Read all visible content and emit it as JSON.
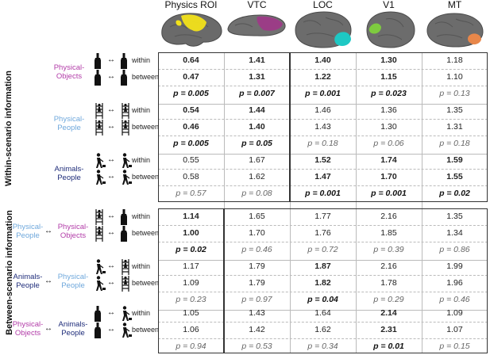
{
  "columns": [
    {
      "label": "Physics ROI",
      "color": "#f2e21a"
    },
    {
      "label": "VTC",
      "color": "#9b3d86"
    },
    {
      "label": "LOC",
      "color": "#1ec8c4"
    },
    {
      "label": "V1",
      "color": "#7ecb3f"
    },
    {
      "label": "MT",
      "color": "#e8874a"
    }
  ],
  "sections": {
    "within": "Within-scenario information",
    "between": "Between-scenario information"
  },
  "row_labels": {
    "within": "within",
    "between": "between"
  },
  "groups": [
    {
      "left": "Physical-\nObjects",
      "right": "",
      "left_class": "c-phys-obj",
      "right_class": "",
      "icon_within": "bottle ↔ bottle",
      "icon_between": "bottle ↔ bottle",
      "rows": [
        {
          "values": [
            "0.64",
            "1.41",
            "1.40",
            "1.30",
            "1.18"
          ],
          "styles": [
            "b",
            "b",
            "b",
            "b",
            ""
          ]
        },
        {
          "values": [
            "0.47",
            "1.31",
            "1.22",
            "1.15",
            "1.10"
          ],
          "styles": [
            "b",
            "b",
            "b",
            "b",
            ""
          ]
        },
        {
          "values": [
            "p = 0.005",
            "p = 0.007",
            "p = 0.001",
            "p = 0.023",
            "p = 0.13"
          ],
          "styles": [
            "bi",
            "bi",
            "bi",
            "bi",
            "i"
          ]
        }
      ]
    },
    {
      "left": "Physical-\nPeople",
      "right": "",
      "left_class": "c-phys-ppl",
      "right_class": "",
      "icon_within": "ladder ↔ ladder",
      "icon_between": "ladder ↔ ladder",
      "rows": [
        {
          "values": [
            "0.54",
            "1.44",
            "1.46",
            "1.36",
            "1.35"
          ],
          "styles": [
            "b",
            "b",
            "",
            "",
            ""
          ]
        },
        {
          "values": [
            "0.46",
            "1.40",
            "1.43",
            "1.30",
            "1.31"
          ],
          "styles": [
            "b",
            "b",
            "",
            "",
            ""
          ]
        },
        {
          "values": [
            "p = 0.005",
            "p = 0.05",
            "p = 0.18",
            "p = 0.06",
            "p = 0.18"
          ],
          "styles": [
            "bi",
            "bi",
            "i",
            "i",
            "i"
          ]
        }
      ]
    },
    {
      "left": "Animals-\nPeople",
      "right": "",
      "left_class": "c-anim-ppl",
      "right_class": "",
      "icon_within": "walker ↔ walker",
      "icon_between": "walker ↔ walker",
      "rows": [
        {
          "values": [
            "0.55",
            "1.67",
            "1.52",
            "1.74",
            "1.59"
          ],
          "styles": [
            "",
            "",
            "b",
            "b",
            "b"
          ]
        },
        {
          "values": [
            "0.58",
            "1.62",
            "1.47",
            "1.70",
            "1.55"
          ],
          "styles": [
            "",
            "",
            "b",
            "b",
            "b"
          ]
        },
        {
          "values": [
            "p = 0.57",
            "p = 0.08",
            "p = 0.001",
            "p = 0.001",
            "p = 0.02"
          ],
          "styles": [
            "i",
            "i",
            "bi",
            "bi",
            "bi"
          ]
        }
      ]
    },
    {
      "left": "Physical-\nPeople",
      "right": "Physical-\nObjects",
      "left_class": "c-phys-ppl",
      "right_class": "c-phys-obj",
      "icon_within": "ladder ↔ bottle",
      "icon_between": "ladder ↔ bottle",
      "rows": [
        {
          "values": [
            "1.14",
            "1.65",
            "1.77",
            "2.16",
            "1.35"
          ],
          "styles": [
            "b",
            "",
            "",
            "",
            ""
          ]
        },
        {
          "values": [
            "1.00",
            "1.70",
            "1.76",
            "1.85",
            "1.34"
          ],
          "styles": [
            "b",
            "",
            "",
            "",
            ""
          ]
        },
        {
          "values": [
            "p = 0.02",
            "p = 0.46",
            "p = 0.72",
            "p = 0.39",
            "p = 0.86"
          ],
          "styles": [
            "bi",
            "i",
            "i",
            "i",
            "i"
          ]
        }
      ]
    },
    {
      "left": "Animals-\nPeople",
      "right": "Physical-\nPeople",
      "left_class": "c-anim-ppl",
      "right_class": "c-phys-ppl",
      "icon_within": "walker ↔ ladder",
      "icon_between": "walker ↔ ladder",
      "rows": [
        {
          "values": [
            "1.17",
            "1.79",
            "1.87",
            "2.16",
            "1.99"
          ],
          "styles": [
            "",
            "",
            "b",
            "",
            ""
          ]
        },
        {
          "values": [
            "1.09",
            "1.79",
            "1.82",
            "1.78",
            "1.96"
          ],
          "styles": [
            "",
            "",
            "b",
            "",
            ""
          ]
        },
        {
          "values": [
            "p = 0.23",
            "p = 0.97",
            "p = 0.04",
            "p = 0.29",
            "p = 0.46"
          ],
          "styles": [
            "i",
            "i",
            "bi",
            "i",
            "i"
          ]
        }
      ]
    },
    {
      "left": "Physical-\nObjects",
      "right": "Animals-\nPeople",
      "left_class": "c-phys-obj",
      "right_class": "c-anim-ppl",
      "icon_within": "bottle ↔ walker",
      "icon_between": "bottle ↔ walker",
      "rows": [
        {
          "values": [
            "1.05",
            "1.43",
            "1.64",
            "2.14",
            "1.09"
          ],
          "styles": [
            "",
            "",
            "",
            "b",
            ""
          ]
        },
        {
          "values": [
            "1.06",
            "1.42",
            "1.62",
            "2.31",
            "1.07"
          ],
          "styles": [
            "",
            "",
            "",
            "b",
            ""
          ]
        },
        {
          "values": [
            "p = 0.94",
            "p = 0.53",
            "p = 0.34",
            "p = 0.01",
            "p = 0.15"
          ],
          "styles": [
            "i",
            "i",
            "i",
            "bi",
            "i"
          ]
        }
      ]
    }
  ]
}
